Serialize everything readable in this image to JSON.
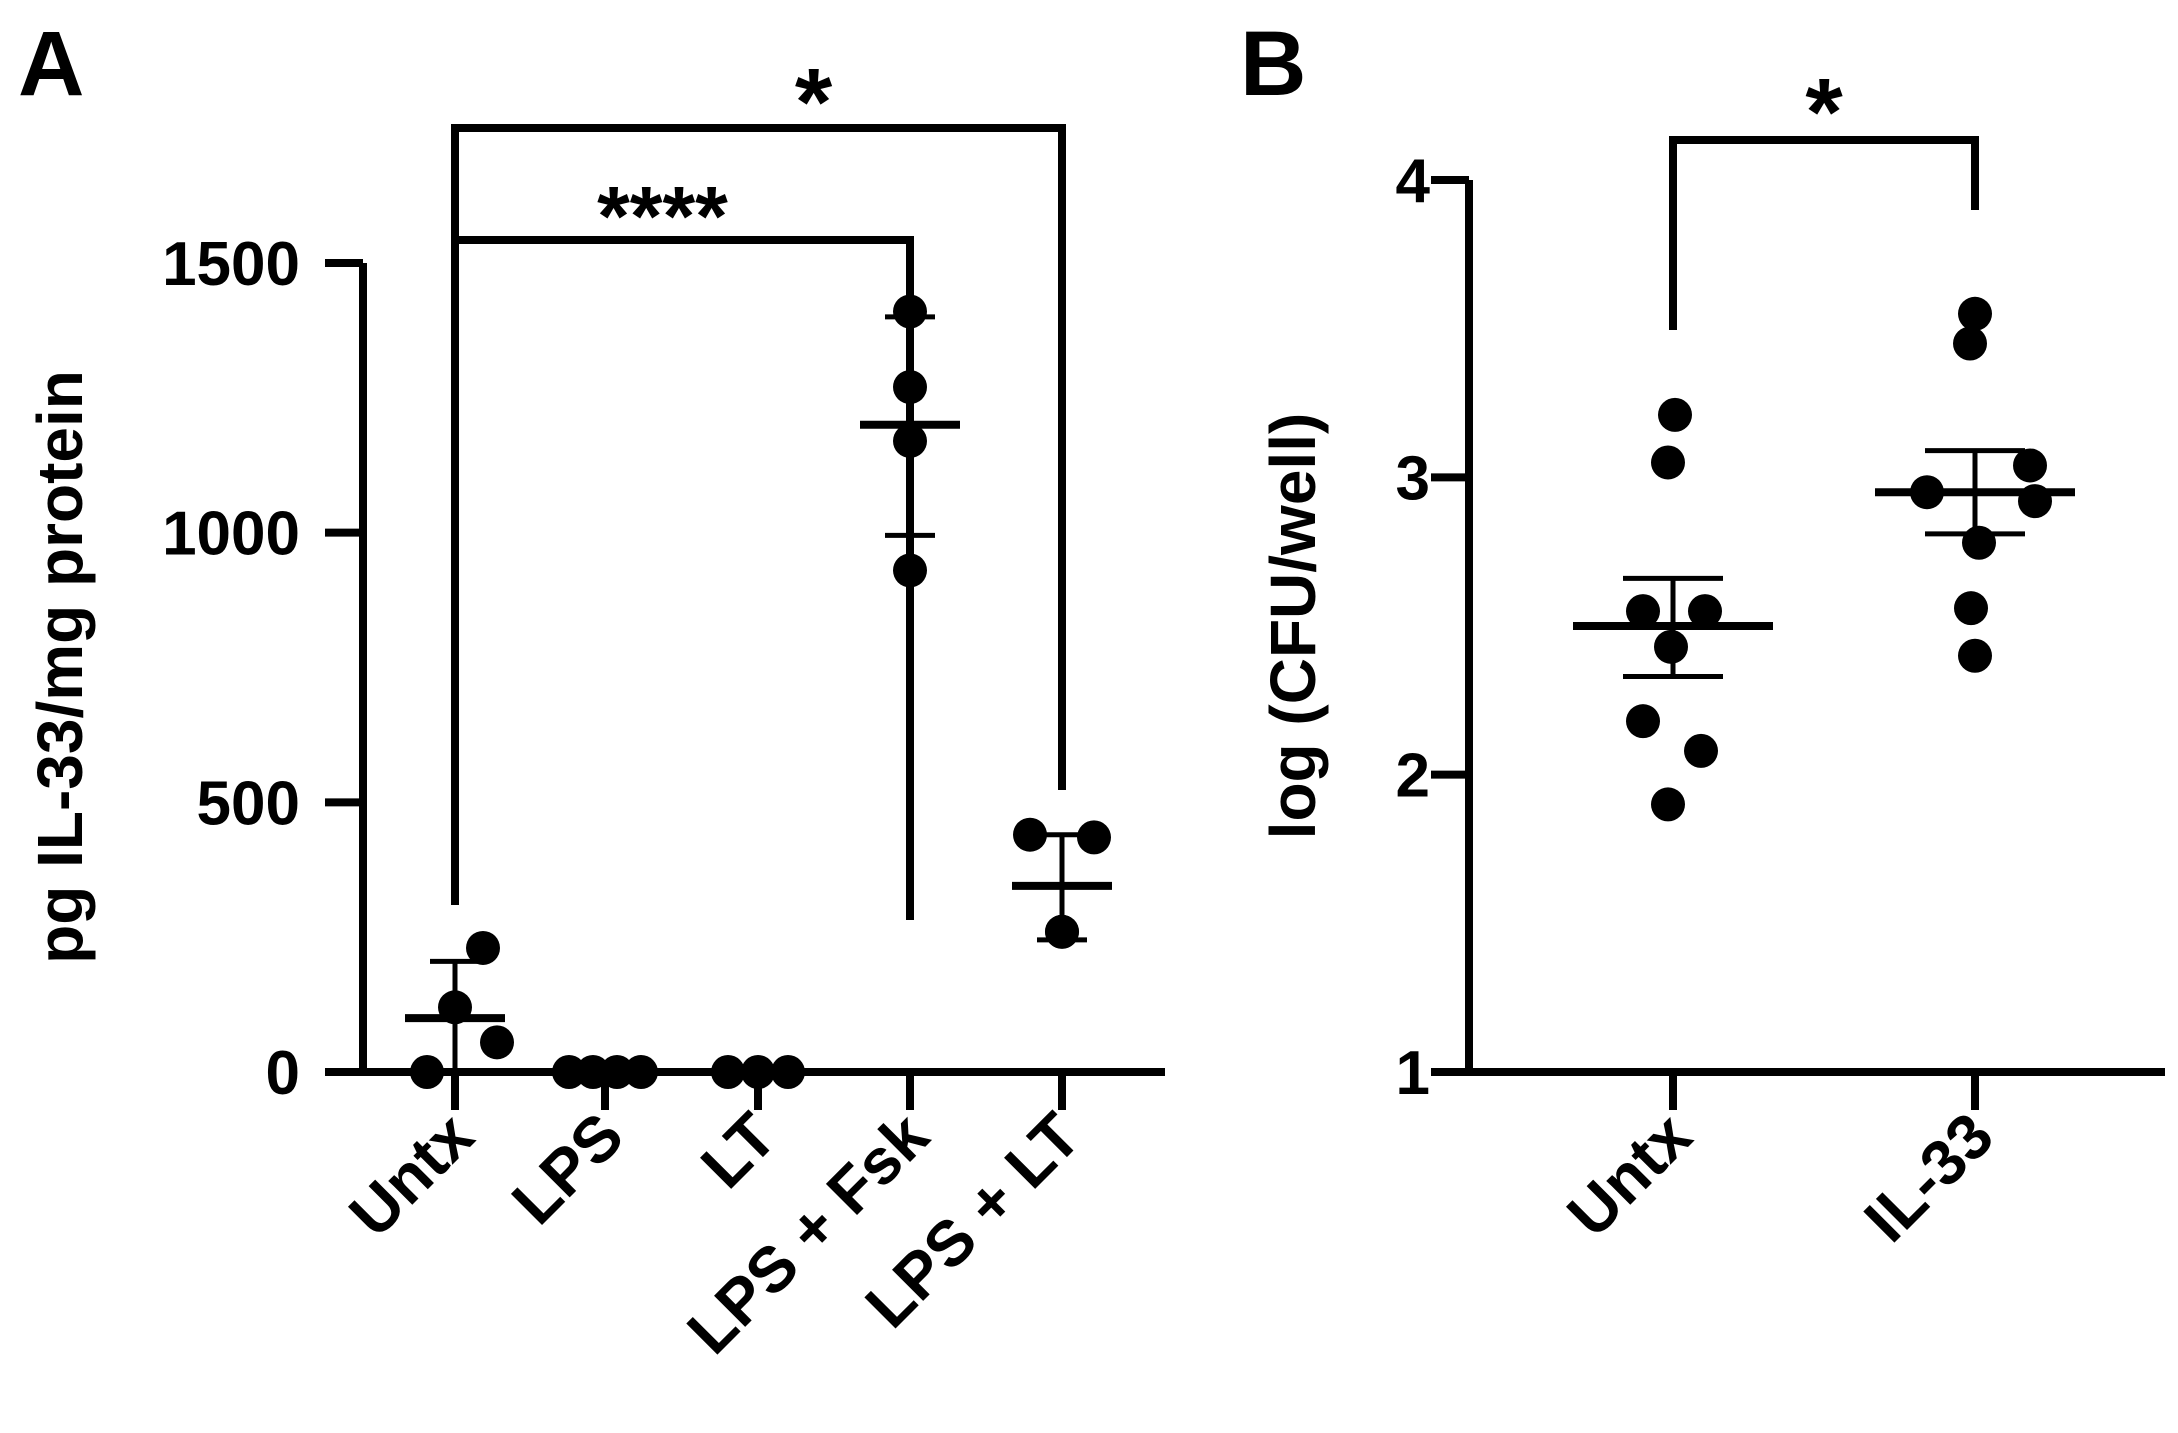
{
  "chart_data": [
    {
      "panel_label": "A",
      "type": "scatter",
      "style": "dot-plot with mean and error bars",
      "ylabel": "pg IL-33/mg protein",
      "ylim": [
        0,
        1500
      ],
      "yticks": [
        0,
        500,
        1000,
        1500
      ],
      "yticklabels": [
        "0",
        "500",
        "1000",
        "1500"
      ],
      "categories": [
        "Untx",
        "LPS",
        "LT",
        "LPS + Fsk",
        "LPS + LT"
      ],
      "series": [
        {
          "points": [
            0,
            120,
            230,
            55
          ],
          "mean": 100,
          "error": [
            0,
            205
          ]
        },
        {
          "points": [
            0,
            0,
            0,
            0
          ],
          "mean": 0,
          "error": [
            0,
            0
          ]
        },
        {
          "points": [
            0,
            0,
            0
          ],
          "mean": 0,
          "error": [
            0,
            0
          ]
        },
        {
          "points": [
            1410,
            1270,
            1170,
            930
          ],
          "mean": 1200,
          "error": [
            995,
            1400
          ]
        },
        {
          "points": [
            440,
            260,
            260,
            435
          ],
          "mean": 345,
          "error": [
            245,
            440
          ]
        }
      ],
      "significance": [
        {
          "from": 0,
          "to": 3,
          "label": "****"
        },
        {
          "from": 0,
          "to": 4,
          "label": "*"
        }
      ]
    },
    {
      "panel_label": "B",
      "type": "scatter",
      "style": "dot-plot with mean and error bars",
      "ylabel": "log (CFU/well)",
      "ylim": [
        1,
        4
      ],
      "yticks": [
        1,
        2,
        3,
        4
      ],
      "yticklabels": [
        "1",
        "2",
        "3",
        "4"
      ],
      "categories": [
        "Untx",
        "IL-33"
      ],
      "series": [
        {
          "points": [
            3.21,
            3.05,
            2.55,
            2.55,
            2.43,
            2.18,
            2.08,
            1.9
          ],
          "mean": 2.5,
          "error": [
            2.33,
            2.66
          ]
        },
        {
          "points": [
            3.55,
            3.45,
            3.04,
            2.95,
            2.92,
            2.78,
            2.56,
            2.4
          ],
          "mean": 2.95,
          "error": [
            2.81,
            3.09
          ]
        }
      ],
      "significance": [
        {
          "from": 0,
          "to": 1,
          "label": "*"
        }
      ]
    }
  ]
}
